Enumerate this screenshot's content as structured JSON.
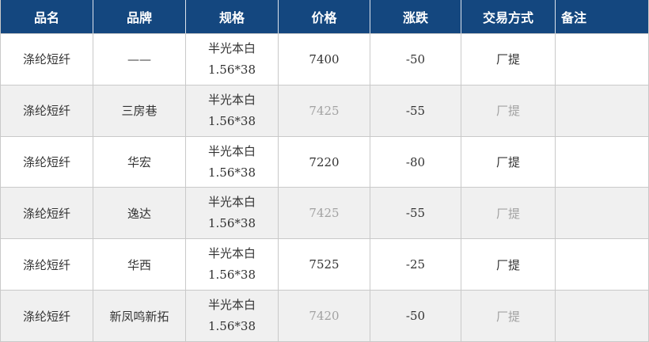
{
  "table": {
    "headers": [
      "品名",
      "品牌",
      "规格",
      "价格",
      "涨跌",
      "交易方式",
      "备注"
    ],
    "rows": [
      {
        "name": "涤纶短纤",
        "brand": "——",
        "spec_line1": "半光本白",
        "spec_line2": "1.56*38",
        "price": "7400",
        "change": "-50",
        "trade": "厂提",
        "note": ""
      },
      {
        "name": "涤纶短纤",
        "brand": "三房巷",
        "spec_line1": "半光本白",
        "spec_line2": "1.56*38",
        "price": "7425",
        "change": "-55",
        "trade": "厂提",
        "note": ""
      },
      {
        "name": "涤纶短纤",
        "brand": "华宏",
        "spec_line1": "半光本白",
        "spec_line2": "1.56*38",
        "price": "7220",
        "change": "-80",
        "trade": "厂提",
        "note": ""
      },
      {
        "name": "涤纶短纤",
        "brand": "逸达",
        "spec_line1": "半光本白",
        "spec_line2": "1.56*38",
        "price": "7425",
        "change": "-55",
        "trade": "厂提",
        "note": ""
      },
      {
        "name": "涤纶短纤",
        "brand": "华西",
        "spec_line1": "半光本白",
        "spec_line2": "1.56*38",
        "price": "7525",
        "change": "-25",
        "trade": "厂提",
        "note": ""
      },
      {
        "name": "涤纶短纤",
        "brand": "新凤鸣新拓",
        "spec_line1": "半光本白",
        "spec_line2": "1.56*38",
        "price": "7420",
        "change": "-50",
        "trade": "厂提",
        "note": ""
      }
    ]
  },
  "colors": {
    "header_bg": "#14477f",
    "header_text": "#ffffff",
    "body_text": "#333333",
    "muted_text": "#a2a2a2",
    "row_bg": "#ffffff",
    "alt_row_bg": "#f0f0f0",
    "border": "#c9c9c9"
  }
}
